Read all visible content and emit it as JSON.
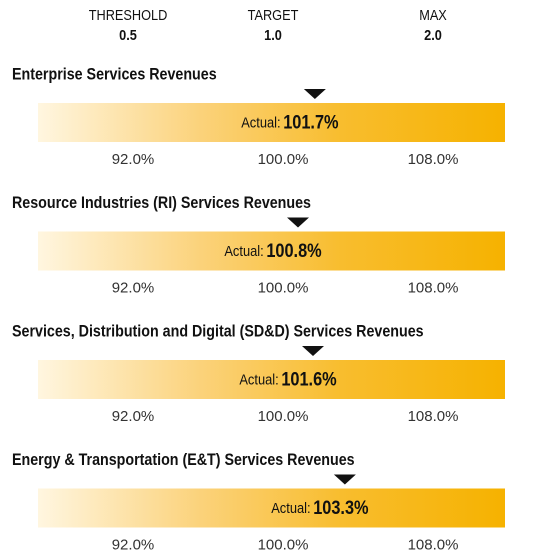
{
  "header": [
    {
      "label": "THRESHOLD",
      "value": "0.5"
    },
    {
      "label": "TARGET",
      "value": "1.0"
    },
    {
      "label": "MAX",
      "value": "2.0"
    }
  ],
  "panels": [
    {
      "title": "Enterprise Services Revenues",
      "actual_label": "Actual:",
      "actual": 101.7,
      "actual_value_label": "101.7%",
      "scale": [
        {
          "value": 92,
          "label": "92.0%"
        },
        {
          "value": 100,
          "label": "100.0%"
        },
        {
          "value": 108,
          "label": "108.0%"
        }
      ]
    },
    {
      "title": "Resource Industries (RI) Services Revenues",
      "actual_label": "Actual:",
      "actual": 100.8,
      "actual_value_label": "100.8%",
      "scale": [
        {
          "value": 92,
          "label": "92.0%"
        },
        {
          "value": 100,
          "label": "100.0%"
        },
        {
          "value": 108,
          "label": "108.0%"
        }
      ]
    },
    {
      "title": "Services, Distribution and Digital (SD&D) Services Revenues",
      "actual_label": "Actual:",
      "actual": 101.6,
      "actual_value_label": "101.6%",
      "scale": [
        {
          "value": 92,
          "label": "92.0%"
        },
        {
          "value": 100,
          "label": "100.0%"
        },
        {
          "value": 108,
          "label": "108.0%"
        }
      ]
    },
    {
      "title": "Energy & Transportation (E&T) Services Revenues",
      "actual_label": "Actual:",
      "actual": 103.3,
      "actual_value_label": "103.3%",
      "scale": [
        {
          "value": 92,
          "label": "92.0%"
        },
        {
          "value": 100,
          "label": "100.0%"
        },
        {
          "value": 108,
          "label": "108.0%"
        }
      ]
    }
  ]
}
